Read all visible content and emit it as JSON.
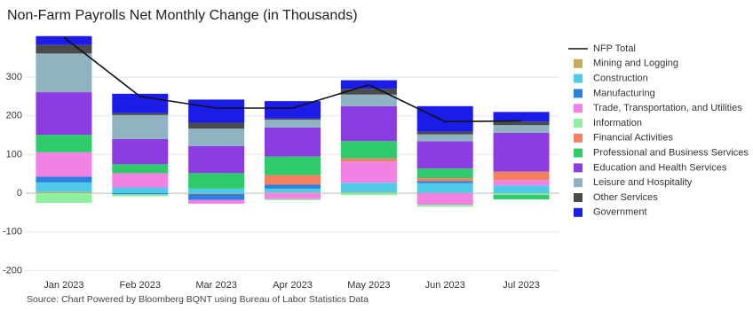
{
  "chart_data": {
    "type": "stacked_bar_line",
    "title": "Non-Farm Payrolls Net Monthly Change (in Thousands)",
    "source": "Source: Chart Powered by Bloomberg BQNT using Bureau of Labor Statistics Data",
    "categories": [
      "Jan 2023",
      "Feb 2023",
      "Mar 2023",
      "Apr 2023",
      "May 2023",
      "Jun 2023",
      "Jul 2023"
    ],
    "ylim": [
      -215,
      410
    ],
    "yticks": [
      -200,
      -100,
      0,
      100,
      200,
      300
    ],
    "grid": true,
    "legend": "right",
    "line": {
      "name": "NFP Total",
      "color": "#111111",
      "values": [
        403,
        250,
        220,
        220,
        280,
        185,
        187
      ]
    },
    "series": [
      {
        "name": "Mining and Logging",
        "color": "#c9a95c",
        "values": [
          3,
          0,
          -2,
          2,
          2,
          1,
          -1
        ]
      },
      {
        "name": "Construction",
        "color": "#4fcbe9",
        "values": [
          25,
          15,
          12,
          10,
          25,
          25,
          20
        ]
      },
      {
        "name": "Manufacturing",
        "color": "#2b7fe0",
        "values": [
          15,
          -3,
          -15,
          10,
          0,
          5,
          0
        ]
      },
      {
        "name": "Trade, Transportation, and Utilities",
        "color": "#f281e4",
        "values": [
          63,
          37,
          -10,
          -15,
          55,
          -30,
          14
        ]
      },
      {
        "name": "Information",
        "color": "#8ff0a0",
        "values": [
          -25,
          -5,
          0,
          -3,
          -5,
          -5,
          -3
        ]
      },
      {
        "name": "Financial Activities",
        "color": "#f2825f",
        "values": [
          0,
          0,
          0,
          25,
          8,
          8,
          22
        ]
      },
      {
        "name": "Professional and Business Services",
        "color": "#2fcb6a",
        "values": [
          45,
          23,
          40,
          48,
          45,
          25,
          -12
        ]
      },
      {
        "name": "Education and Health Services",
        "color": "#8b3de2",
        "values": [
          110,
          65,
          70,
          75,
          90,
          70,
          100
        ]
      },
      {
        "name": "Leisure and Hospitality",
        "color": "#90b3c2",
        "values": [
          100,
          62,
          45,
          20,
          30,
          18,
          20
        ]
      },
      {
        "name": "Other Services",
        "color": "#4a4a4a",
        "values": [
          22,
          5,
          15,
          3,
          15,
          7,
          9
        ]
      },
      {
        "name": "Government",
        "color": "#1c1ce8",
        "values": [
          23,
          50,
          60,
          45,
          22,
          66,
          25
        ]
      }
    ]
  }
}
